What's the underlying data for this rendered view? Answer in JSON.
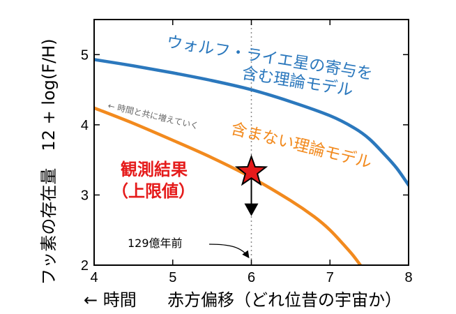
{
  "chart_data": {
    "type": "line",
    "title": "",
    "xlabel": "赤方偏移（どれ位昔の宇宙か）",
    "xlabel_prefix": "← 時間",
    "ylabel": "フッ素の存在量　12 + log(F/H)",
    "xlim": [
      4,
      8
    ],
    "ylim": [
      2,
      5.5
    ],
    "x_ticks": [
      "4",
      "5",
      "6",
      "7",
      "8"
    ],
    "y_ticks": [
      "2",
      "3",
      "4",
      "5"
    ],
    "grid": false,
    "legend": "none",
    "series": [
      {
        "name": "ウォルフ・ライエ星の寄与を含む理論モデル",
        "label_lines": [
          "ウォルフ・ライエ星の寄与を",
          "含む理論モデル"
        ],
        "color": "#2b78bd",
        "x": [
          4.0,
          4.5,
          5.0,
          5.5,
          6.0,
          6.5,
          7.0,
          7.3,
          7.5,
          7.7,
          7.85,
          8.0
        ],
        "y": [
          4.93,
          4.84,
          4.74,
          4.63,
          4.5,
          4.33,
          4.13,
          3.96,
          3.8,
          3.57,
          3.38,
          3.14
        ]
      },
      {
        "name": "含まない理論モデル",
        "label_lines": [
          "含まない理論モデル"
        ],
        "color": "#f28a1e",
        "x": [
          4.0,
          4.5,
          5.0,
          5.5,
          6.0,
          6.5,
          6.8,
          7.0,
          7.2,
          7.3,
          7.4
        ],
        "y": [
          4.24,
          4.02,
          3.78,
          3.53,
          3.25,
          2.92,
          2.69,
          2.5,
          2.26,
          2.13,
          1.98
        ]
      }
    ],
    "observation": {
      "x": 6.0,
      "y": 3.33,
      "upper_limit_to": 2.72,
      "marker": "star",
      "color": "#e51b1b",
      "label_lines": [
        "観測結果",
        "（上限値）"
      ]
    },
    "vline": {
      "x": 6.0,
      "style": "dotted",
      "color": "#888888"
    },
    "annotations": {
      "time_arrow": "← 時間と共に増えていく",
      "age": "129億年前"
    }
  }
}
